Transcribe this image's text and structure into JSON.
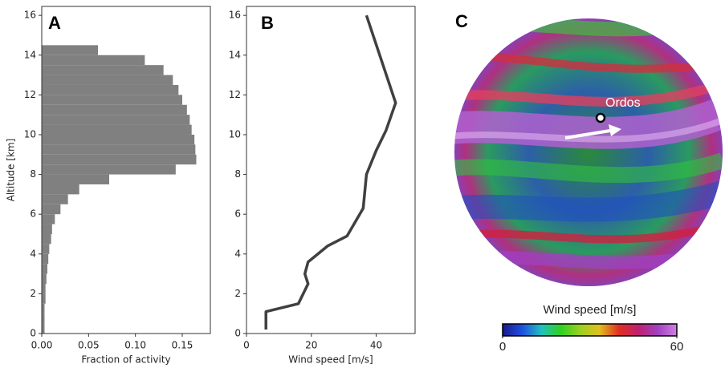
{
  "chart_data": [
    {
      "type": "histogram",
      "panel_label": "A",
      "xlabel": "Fraction of activity",
      "ylabel": "Altitude [km]",
      "color": "#808080",
      "bins": [
        0,
        0.5,
        1,
        1.5,
        2,
        2.5,
        3,
        3.5,
        4,
        4.5,
        5,
        5.5,
        6,
        6.5,
        7,
        7.5,
        8,
        8.5,
        9,
        9.5,
        10,
        10.5,
        11,
        11.5,
        12,
        12.5,
        13,
        13.5,
        14,
        14.5
      ],
      "values": [
        0.003,
        0.003,
        0.003,
        0.004,
        0.004,
        0.005,
        0.006,
        0.007,
        0.008,
        0.01,
        0.011,
        0.014,
        0.02,
        0.028,
        0.04,
        0.072,
        0.143,
        0.165,
        0.164,
        0.163,
        0.16,
        0.158,
        0.155,
        0.15,
        0.146,
        0.14,
        0.13,
        0.11,
        0.06
      ],
      "xlim": [
        0,
        0.18
      ],
      "ylim": [
        0,
        16.45
      ],
      "xticks": [
        {
          "value": 0,
          "label": "0.00"
        },
        {
          "value": 0.05,
          "label": "0.05"
        },
        {
          "value": 0.1,
          "label": "0.10"
        },
        {
          "value": 0.15,
          "label": "0.15"
        }
      ],
      "yticks": [
        0,
        2,
        4,
        6,
        8,
        10,
        12,
        14,
        16
      ]
    },
    {
      "type": "line",
      "panel_label": "B",
      "xlabel": "Wind speed [m/s]",
      "color": "#404040",
      "x": [
        6,
        6,
        16,
        19,
        18,
        19,
        25,
        31,
        36,
        37,
        40,
        43,
        46,
        37
      ],
      "values": [
        0.2,
        1.1,
        1.5,
        2.5,
        3,
        3.6,
        4.4,
        4.9,
        6.3,
        8,
        9.2,
        10.2,
        11.6,
        16
      ],
      "xlim": [
        0,
        52
      ],
      "ylim": [
        0,
        16.45
      ],
      "xticks": [
        0,
        20,
        40
      ],
      "yticks": [
        0,
        2,
        4,
        6,
        8,
        10,
        12,
        14,
        16
      ]
    },
    {
      "type": "map",
      "panel_label": "C",
      "annotation": "Ordos",
      "colorbar_label": "Wind speed [m/s]",
      "clim": [
        0,
        60
      ],
      "colorbar_ticks": [
        0,
        60
      ],
      "colormap": [
        "#1a1a8c",
        "#1e4fe0",
        "#20c0c0",
        "#30d020",
        "#9ad020",
        "#e0c020",
        "#e03020",
        "#c02070",
        "#a040c0",
        "#d080e0"
      ]
    }
  ]
}
